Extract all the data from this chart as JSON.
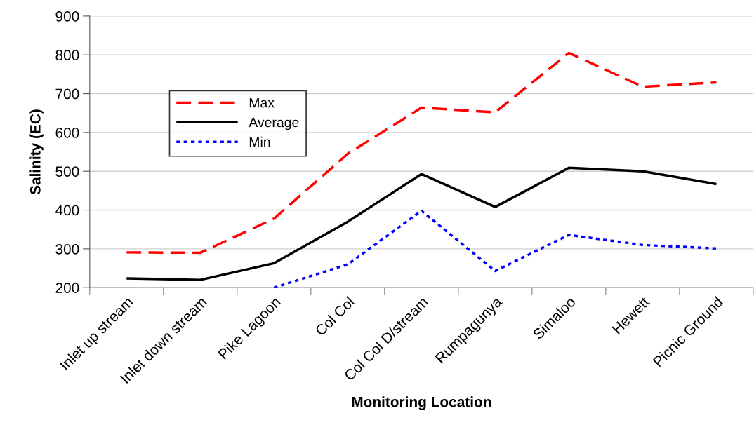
{
  "chart_data": {
    "type": "line",
    "xlabel": "Monitoring Location",
    "ylabel": "Salinity (EC)",
    "categories": [
      "Inlet up stream",
      "Inlet down stream",
      "Pike Lagoon",
      "Col Col",
      "Col Col D/stream",
      "Rumpagunya",
      "Simaloo",
      "Hewett",
      "Picnic Ground"
    ],
    "series": [
      {
        "name": "Max",
        "color": "#ff0000",
        "line_style": "dashed",
        "values": [
          291,
          290,
          378,
          545,
          664,
          652,
          805,
          718,
          729
        ]
      },
      {
        "name": "Average",
        "color": "#000000",
        "line_style": "solid",
        "values": [
          224,
          220,
          263,
          370,
          493,
          408,
          509,
          500,
          467
        ]
      },
      {
        "name": "Min",
        "color": "#0000ff",
        "line_style": "dotted",
        "values": [
          null,
          null,
          200,
          260,
          398,
          243,
          336,
          310,
          301
        ]
      }
    ],
    "ylim": [
      200,
      900
    ],
    "yticks": [
      200,
      300,
      400,
      500,
      600,
      700,
      800,
      900
    ],
    "grid": "y",
    "legend": "top left",
    "marker": "none"
  }
}
